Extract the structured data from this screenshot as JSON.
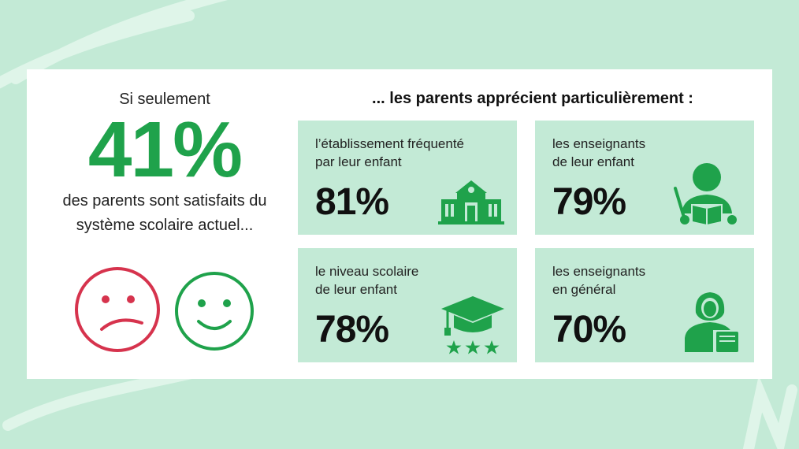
{
  "colors": {
    "accent": "#1fa24b",
    "sad": "#d6334d",
    "background": "#c3ead6",
    "tile": "#c3ead6"
  },
  "left": {
    "intro": "Si seulement",
    "big_percent": "41%",
    "outro": "des parents sont satisfaits du système scolaire actuel...",
    "faces": [
      "sad-face-icon",
      "happy-face-icon"
    ]
  },
  "heading": "... les parents apprécient particulièrement :",
  "tiles": [
    {
      "label": "l’établissement fréquenté\npar leur enfant",
      "percent": "81%",
      "icon": "school-building-icon"
    },
    {
      "label": "les enseignants\nde leur enfant",
      "percent": "79%",
      "icon": "teacher-icon"
    },
    {
      "label": "le niveau scolaire\nde leur enfant",
      "percent": "78%",
      "icon": "graduation-cap-stars-icon"
    },
    {
      "label": "les enseignants\nen général",
      "percent": "70%",
      "icon": "teacher-with-book-icon"
    }
  ]
}
